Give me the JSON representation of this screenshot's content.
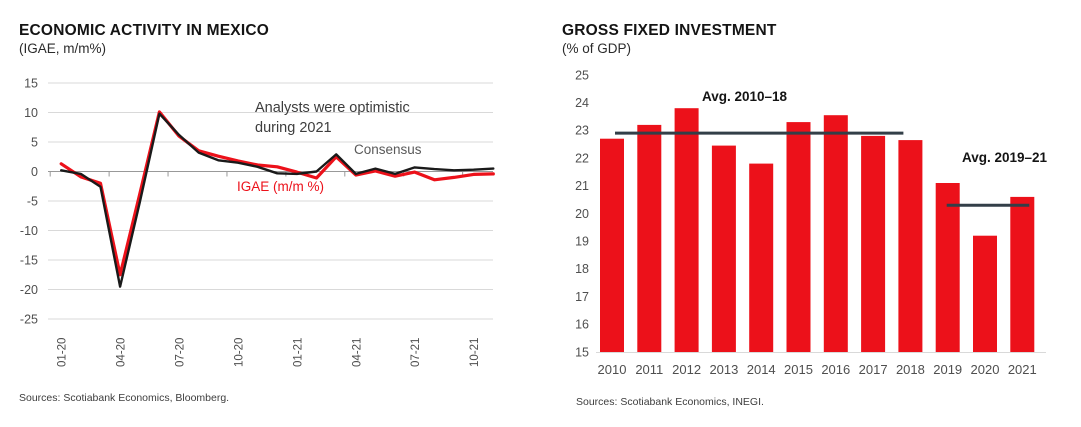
{
  "colors": {
    "brand_red": "#EC111A",
    "consensus_black": "#1A1A1A",
    "avg_line_navy": "#333F48",
    "grid_gray": "#D9D9D9",
    "axis_gray": "#999999",
    "tick_text_gray": "#4f4f4f"
  },
  "chart_data": [
    {
      "type": "line",
      "title": "ECONOMIC ACTIVITY IN MEXICO",
      "subtitle": "(IGAE, m/m%)",
      "annotation": "Analysts were optimistic during 2021",
      "sources": "Sources: Scotiabank Economics, Bloomberg.",
      "ylim": [
        -25,
        15
      ],
      "yticks": [
        15,
        10,
        5,
        0,
        -5,
        -10,
        -15,
        -20,
        -25
      ],
      "grid": true,
      "n_points": 23,
      "x_start": "01-20",
      "x_end": "11-21",
      "x_tick_labels": [
        "01-20",
        "04-20",
        "07-20",
        "10-20",
        "01-21",
        "04-21",
        "07-21",
        "10-21"
      ],
      "x_tick_indices": [
        0,
        3,
        6,
        9,
        12,
        15,
        18,
        21
      ],
      "series": [
        {
          "name": "Consensus",
          "color": "#1A1A1A",
          "values": [
            0.2,
            -0.4,
            -2.6,
            -19.5,
            -5.2,
            9.8,
            6.2,
            3.2,
            1.9,
            1.5,
            0.8,
            -0.3,
            -0.4,
            0.0,
            2.9,
            -0.4,
            0.5,
            -0.4,
            0.7,
            0.4,
            0.2,
            0.3,
            0.5
          ]
        },
        {
          "name": "IGAE (m/m %)",
          "color": "#EC111A",
          "values": [
            1.3,
            -0.9,
            -2.0,
            -17.5,
            -3.8,
            10.1,
            6.0,
            3.5,
            2.6,
            1.8,
            1.1,
            0.8,
            -0.1,
            -1.1,
            2.5,
            -0.6,
            0.1,
            -0.8,
            -0.1,
            -1.4,
            -1.0,
            -0.5,
            -0.4
          ]
        }
      ]
    },
    {
      "type": "bar",
      "title": "GROSS FIXED INVESTMENT",
      "subtitle": "(% of GDP)",
      "sources": "Sources: Scotiabank Economics, INEGI.",
      "ylim": [
        15,
        25
      ],
      "yticks": [
        25,
        24,
        23,
        22,
        21,
        20,
        19,
        18,
        17,
        16,
        15
      ],
      "grid": false,
      "bar_color": "#EC111A",
      "categories": [
        "2010",
        "2011",
        "2012",
        "2013",
        "2014",
        "2015",
        "2016",
        "2017",
        "2018",
        "2019",
        "2020",
        "2021"
      ],
      "values": [
        22.7,
        23.2,
        23.8,
        22.45,
        21.8,
        23.3,
        23.55,
        22.8,
        22.65,
        21.1,
        19.2,
        20.6
      ],
      "avg_lines": [
        {
          "label": "Avg. 2010–18",
          "value": 22.9,
          "from_index": 0,
          "to_index": 8,
          "color": "#333F48"
        },
        {
          "label": "Avg. 2019–21",
          "value": 20.3,
          "from_index": 9,
          "to_index": 11,
          "color": "#333F48"
        }
      ]
    }
  ]
}
